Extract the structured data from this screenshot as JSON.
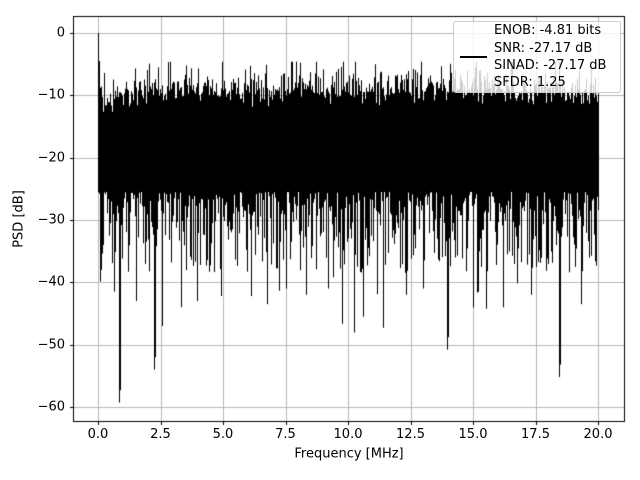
{
  "figure": {
    "background": "#ffffff"
  },
  "chart_data": {
    "type": "line",
    "title": "",
    "xlabel": "Frequency [MHz]",
    "ylabel": "PSD [dB]",
    "xlim": [
      -1.0,
      21.1
    ],
    "ylim": [
      -62.2,
      2.7
    ],
    "xticks": [
      0,
      2.5,
      5,
      7.5,
      10,
      12.5,
      15,
      17.5,
      20
    ],
    "xtick_labels": [
      "0.0",
      "2.5",
      "5.0",
      "7.5",
      "10.0",
      "12.5",
      "15.0",
      "17.5",
      "20.0"
    ],
    "yticks": [
      0,
      -10,
      -20,
      -30,
      -40,
      -50,
      -60
    ],
    "ytick_labels": [
      "0",
      "−10",
      "−20",
      "−30",
      "−40",
      "−50",
      "−60"
    ],
    "grid": true,
    "grid_color": "#b0b0b0",
    "line_color": "#000000",
    "legend": {
      "position": "upper right",
      "handle_color": "#000000",
      "border_color": "#cccccc",
      "background": "rgba(255,255,255,0.8)",
      "label_lines": [
        "ENOB: -4.81 bits",
        "SNR: -27.17 dB",
        "SINAD: -27.17 dB",
        "SFDR: 1.25"
      ]
    },
    "stats": {
      "ENOB_bits": -4.81,
      "SNR_dB": -27.17,
      "SINAD_dB": -27.17,
      "SFDR": 1.25
    },
    "series_model": {
      "description": "Dense noise-like PSD trace spanning 0-20 MHz, rendered as per-pixel-column vertical min/max spans of the spectrum",
      "seed": 77,
      "f_start_mhz": 0,
      "f_end_mhz": 20,
      "f_step_mhz": 0.04,
      "dc_spike_db": [
        [
          0.0,
          0.0
        ],
        [
          0.04,
          -4.5
        ],
        [
          0.08,
          -8.8
        ]
      ],
      "top_envelope": {
        "base_db": -9.3,
        "dc_dip_db": -2.8,
        "dc_dip_tau_mhz": 0.7,
        "hf_rolloff_db_per_mhz": -0.22,
        "hf_rolloff_start_mhz": 16,
        "gumbel_scale_db": 1.3,
        "max_db": -4.6
      },
      "solid_floor": {
        "shallow_db": -25.5,
        "span_db": 13,
        "shape_pow": 1.8,
        "spike_prob": 0.1,
        "spike_scale_db": 3.5,
        "spike_max_db": 10
      },
      "deep_nulls_mhz_db": [
        [
          0.12,
          -38.0
        ],
        [
          0.2,
          -34.0
        ],
        [
          0.63,
          -41.5
        ],
        [
          0.84,
          -59.3
        ],
        [
          1.5,
          -43.0
        ],
        [
          2.25,
          -54.0
        ],
        [
          2.56,
          -47.0
        ],
        [
          3.3,
          -44.0
        ],
        [
          3.95,
          -43.0
        ],
        [
          4.9,
          -42.2
        ],
        [
          6.1,
          -42.2
        ],
        [
          6.75,
          -43.5
        ],
        [
          7.5,
          -41.0
        ],
        [
          8.3,
          -42.0
        ],
        [
          9.2,
          -41.0
        ],
        [
          10.6,
          -45.5
        ],
        [
          11.4,
          -47.3
        ],
        [
          12.3,
          -42.0
        ],
        [
          13.0,
          -41.0
        ],
        [
          13.97,
          -50.8
        ],
        [
          15.2,
          -41.5
        ],
        [
          16.2,
          -44.0
        ],
        [
          17.3,
          -42.0
        ],
        [
          18.45,
          -55.2
        ],
        [
          19.3,
          -43.5
        ]
      ]
    }
  }
}
